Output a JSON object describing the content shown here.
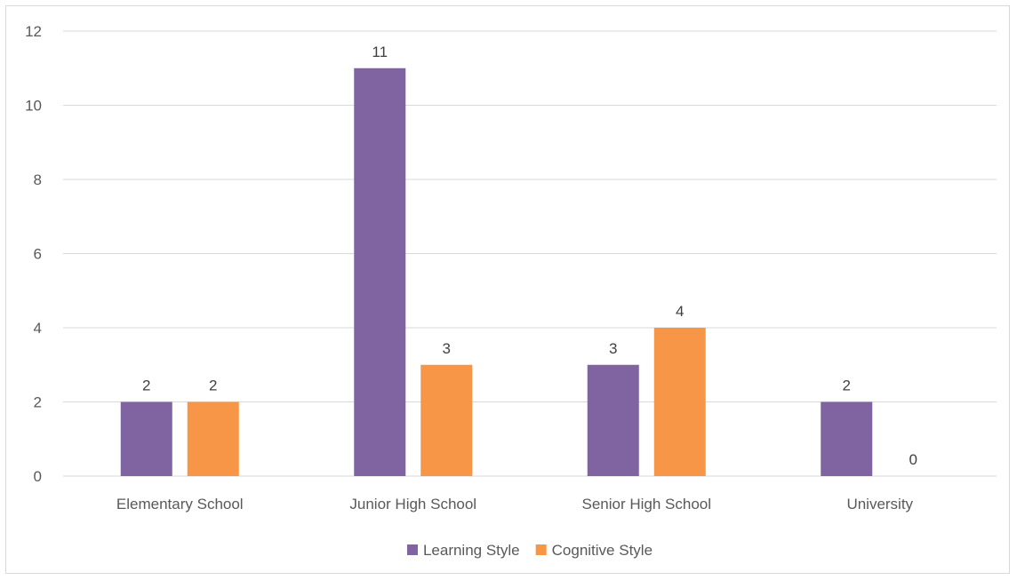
{
  "chart_data": {
    "type": "bar",
    "title": "",
    "xlabel": "",
    "ylabel": "",
    "categories": [
      "Elementary School",
      "Junior High School",
      "Senior High School",
      "University"
    ],
    "series": [
      {
        "name": "Learning Style",
        "values": [
          2,
          11,
          3,
          2
        ],
        "color": "#8064a2"
      },
      {
        "name": "Cognitive Style",
        "values": [
          2,
          3,
          4,
          0
        ],
        "color": "#f79646"
      }
    ],
    "ylim": [
      0,
      12
    ],
    "yticks": [
      0,
      2,
      4,
      6,
      8,
      10,
      12
    ],
    "grid": true,
    "data_labels": true,
    "legend_position": "bottom"
  }
}
